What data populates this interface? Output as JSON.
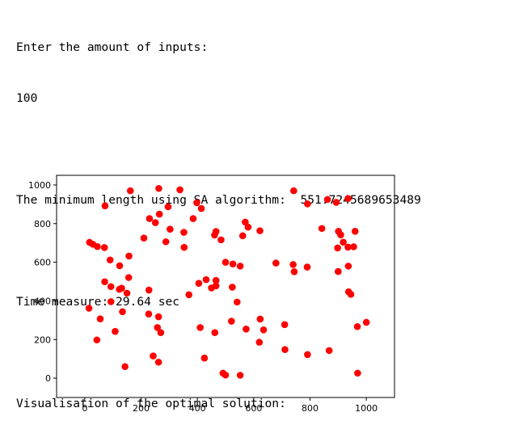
{
  "console": {
    "prompt": "Enter the amount of inputs:",
    "input_value": "100",
    "result_label": "The minimum length using SA algorithm:",
    "result_value": "551.7245689653489",
    "time_line": "Time measure: 29.64 sec",
    "visual_line": "Visualisation of the optimal solution:"
  },
  "chart_data": {
    "type": "scatter",
    "title": "",
    "xlabel": "",
    "ylabel": "",
    "xlim": [
      -100,
      1100
    ],
    "ylim": [
      -100,
      1050
    ],
    "xticks": [
      0,
      200,
      400,
      600,
      800,
      1000
    ],
    "yticks": [
      0,
      200,
      400,
      600,
      800,
      1000
    ],
    "grid": false,
    "marker_color": "#ff0000",
    "series": [
      {
        "points": [
          [
            162,
            970
          ],
          [
            263,
            982
          ],
          [
            338,
            975
          ],
          [
            742,
            970
          ],
          [
            72,
            892
          ],
          [
            398,
            908
          ],
          [
            414,
            878
          ],
          [
            296,
            887
          ],
          [
            265,
            849
          ],
          [
            230,
            826
          ],
          [
            251,
            805
          ],
          [
            385,
            826
          ],
          [
            570,
            808
          ],
          [
            580,
            782
          ],
          [
            622,
            763
          ],
          [
            791,
            902
          ],
          [
            862,
            925
          ],
          [
            893,
            910
          ],
          [
            935,
            930
          ],
          [
            842,
            775
          ],
          [
            901,
            760
          ],
          [
            909,
            742
          ],
          [
            960,
            760
          ],
          [
            17,
            703
          ],
          [
            29,
            693
          ],
          [
            45,
            681
          ],
          [
            70,
            676
          ],
          [
            210,
            725
          ],
          [
            303,
            771
          ],
          [
            352,
            755
          ],
          [
            353,
            677
          ],
          [
            288,
            706
          ],
          [
            461,
            741
          ],
          [
            466,
            759
          ],
          [
            484,
            716
          ],
          [
            561,
            737
          ],
          [
            90,
            612
          ],
          [
            124,
            582
          ],
          [
            157,
            632
          ],
          [
            526,
            591
          ],
          [
            552,
            580
          ],
          [
            679,
            596
          ],
          [
            740,
            588
          ],
          [
            744,
            551
          ],
          [
            790,
            575
          ],
          [
            898,
            674
          ],
          [
            918,
            704
          ],
          [
            935,
            678
          ],
          [
            955,
            680
          ],
          [
            900,
            552
          ],
          [
            936,
            580
          ],
          [
            71,
            499
          ],
          [
            93,
            474
          ],
          [
            131,
            466
          ],
          [
            156,
            521
          ],
          [
            228,
            456
          ],
          [
            405,
            491
          ],
          [
            431,
            510
          ],
          [
            450,
            467
          ],
          [
            466,
            478
          ],
          [
            466,
            506
          ],
          [
            524,
            471
          ],
          [
            541,
            394
          ],
          [
            370,
            432
          ],
          [
            937,
            447
          ],
          [
            945,
            434
          ],
          [
            15,
            362
          ],
          [
            93,
            396
          ],
          [
            134,
            344
          ],
          [
            227,
            332
          ],
          [
            262,
            318
          ],
          [
            55,
            307
          ],
          [
            108,
            242
          ],
          [
            258,
            262
          ],
          [
            270,
            236
          ],
          [
            410,
            262
          ],
          [
            462,
            236
          ],
          [
            521,
            295
          ],
          [
            573,
            254
          ],
          [
            623,
            306
          ],
          [
            635,
            250
          ],
          [
            710,
            277
          ],
          [
            968,
            267
          ],
          [
            1000,
            289
          ],
          [
            43,
            198
          ],
          [
            143,
            60
          ],
          [
            243,
            115
          ],
          [
            262,
            83
          ],
          [
            425,
            104
          ],
          [
            491,
            26
          ],
          [
            500,
            16
          ],
          [
            552,
            15
          ],
          [
            620,
            186
          ],
          [
            711,
            148
          ],
          [
            791,
            122
          ],
          [
            868,
            143
          ],
          [
            969,
            26
          ],
          [
            123,
            460
          ],
          [
            500,
            600
          ],
          [
            150,
            440
          ]
        ]
      }
    ]
  }
}
